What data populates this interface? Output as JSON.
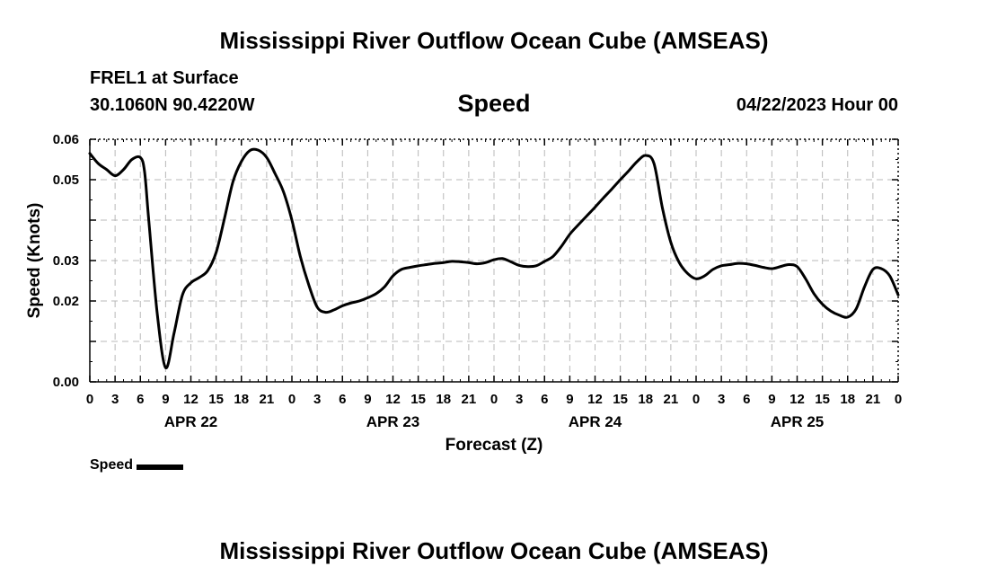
{
  "header": {
    "title": "Mississippi River Outflow Ocean Cube (AMSEAS)",
    "location": "FREL1 at Surface",
    "coordinates": "30.1060N  90.4220W",
    "variable": "Speed",
    "timestamp": "04/22/2023 Hour 00"
  },
  "footer": {
    "title": "Mississippi River Outflow Ocean Cube (AMSEAS)"
  },
  "chart_data": {
    "type": "line",
    "ylabel": "Speed (Knots)",
    "xlabel": "Forecast (Z)",
    "ylim": [
      0,
      0.06
    ],
    "yticks": [
      "0.00",
      "0.01",
      "0.02",
      "0.03",
      "0.04",
      "0.05",
      "0.06"
    ],
    "yticks_labeled": [
      "0.00",
      "0.02",
      "0.03",
      "0.05",
      "0.06"
    ],
    "xlim": [
      0,
      96
    ],
    "xticks": [
      "0",
      "3",
      "6",
      "9",
      "12",
      "15",
      "18",
      "21",
      "0",
      "3",
      "6",
      "9",
      "12",
      "15",
      "18",
      "21",
      "0",
      "3",
      "6",
      "9",
      "12",
      "15",
      "18",
      "21",
      "0",
      "3",
      "6",
      "9",
      "12",
      "15",
      "18",
      "21",
      "0"
    ],
    "day_labels": [
      {
        "label": "APR 22",
        "hour": 12
      },
      {
        "label": "APR 23",
        "hour": 36
      },
      {
        "label": "APR 24",
        "hour": 60
      },
      {
        "label": "APR 25",
        "hour": 84
      }
    ],
    "grid": true,
    "legend_position": "bottom-left",
    "series": [
      {
        "name": "Speed",
        "color": "#000000",
        "x": [
          0,
          1,
          2,
          3,
          4,
          5,
          6,
          6.5,
          7,
          8,
          9,
          10,
          11,
          12,
          13,
          14,
          15,
          16,
          17,
          18,
          19,
          20,
          21,
          22,
          23,
          24,
          25,
          26,
          27,
          28,
          29,
          30,
          31,
          32,
          33,
          34,
          35,
          36,
          37,
          38,
          39,
          40,
          41,
          42,
          43,
          44,
          45,
          46,
          47,
          48,
          49,
          50,
          51,
          52,
          53,
          54,
          55,
          56,
          57,
          58,
          59,
          60,
          61,
          62,
          63,
          64,
          65,
          66,
          67,
          68,
          69,
          70,
          71,
          72,
          73,
          74,
          75,
          76,
          77,
          78,
          79,
          80,
          81,
          82,
          83,
          84,
          85,
          86,
          87,
          88,
          89,
          90,
          91,
          92,
          93,
          94,
          95,
          96
        ],
        "y": [
          0.0565,
          0.054,
          0.0525,
          0.051,
          0.0525,
          0.055,
          0.0555,
          0.052,
          0.04,
          0.017,
          0.0035,
          0.012,
          0.0215,
          0.0245,
          0.0258,
          0.0275,
          0.032,
          0.0405,
          0.0495,
          0.0545,
          0.0572,
          0.0573,
          0.0555,
          0.0515,
          0.047,
          0.04,
          0.031,
          0.024,
          0.0185,
          0.0172,
          0.0178,
          0.0188,
          0.0195,
          0.02,
          0.0208,
          0.0218,
          0.0235,
          0.0262,
          0.0278,
          0.0283,
          0.0287,
          0.029,
          0.0293,
          0.0295,
          0.0298,
          0.0297,
          0.0295,
          0.0292,
          0.0295,
          0.0302,
          0.0305,
          0.0297,
          0.0288,
          0.0285,
          0.0287,
          0.0298,
          0.031,
          0.0335,
          0.0365,
          0.0388,
          0.041,
          0.0432,
          0.0455,
          0.0477,
          0.05,
          0.0522,
          0.0545,
          0.056,
          0.054,
          0.043,
          0.0345,
          0.0295,
          0.0268,
          0.0255,
          0.0262,
          0.0278,
          0.0287,
          0.029,
          0.0293,
          0.0292,
          0.0288,
          0.0283,
          0.028,
          0.0285,
          0.029,
          0.0285,
          0.0255,
          0.0218,
          0.0192,
          0.0175,
          0.0165,
          0.016,
          0.018,
          0.0235,
          0.0278,
          0.028,
          0.0262,
          0.0215
        ]
      }
    ]
  }
}
